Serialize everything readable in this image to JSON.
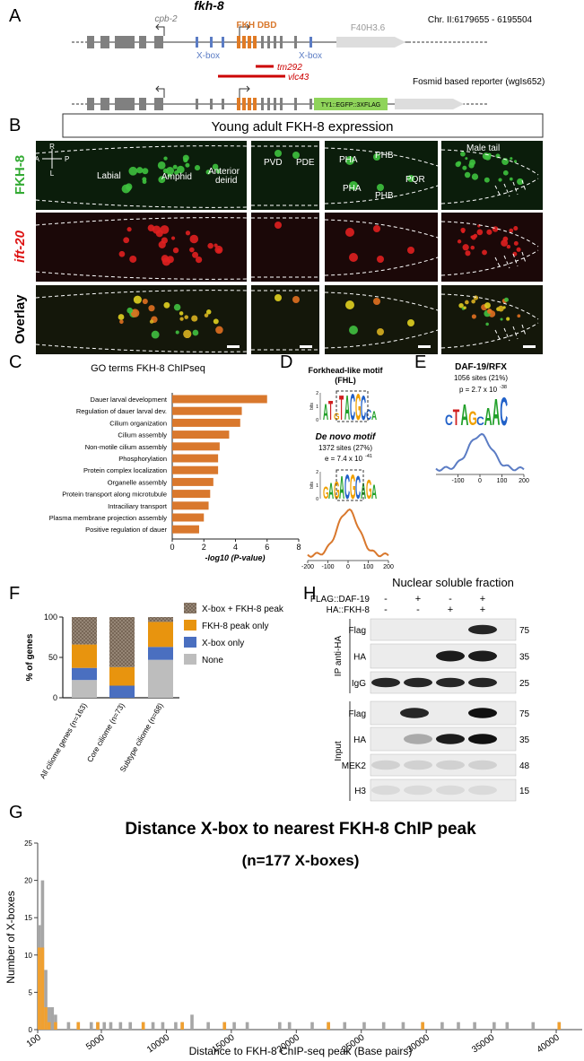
{
  "panel_labels": [
    "A",
    "B",
    "C",
    "D",
    "E",
    "F",
    "G",
    "H"
  ],
  "gene_diagram": {
    "gene": "fkh-8",
    "upstream_gene": "cpb-2",
    "domain": "FKH DBD",
    "downstream_gene": "F40H3.6",
    "locus": "Chr. II:6179655 - 6195504",
    "xbox_labels": [
      "X-box",
      "X-box"
    ],
    "alleles": [
      "tm292",
      "vlc43"
    ],
    "reporter": "Fosmid based reporter (wgIs652)",
    "tag": "TY1::EGFP::3XFLAG"
  },
  "microscopy": {
    "title": "Young adult FKH-8 expression",
    "rows": [
      "FKH-8",
      "ift-20",
      "Overlay"
    ],
    "axes": [
      "R",
      "A",
      "P",
      "L"
    ],
    "labels": [
      "Labial",
      "Amphid",
      "Anterior",
      "deirid",
      "PVD",
      "PDE",
      "PHA",
      "PHB",
      "PHA",
      "PHB",
      "PQR",
      "Male tail"
    ]
  },
  "motifs": {
    "fhl": {
      "title": "Forkhead-like motif",
      "subtitle": "(FHL)",
      "ylabel": "bits",
      "yticks": [
        0,
        1,
        2
      ],
      "logo": [
        "A",
        "T",
        "G",
        "T",
        "A",
        "C",
        "G",
        "C",
        "C",
        "A"
      ]
    },
    "de_novo": {
      "title": "De novo motif",
      "sites": "1372 sites (27%)",
      "statistic": "e = 7.4 x 10",
      "exponent": "-41",
      "ylabel": "bits",
      "yticks": [
        0,
        1,
        2
      ],
      "logo": [
        "G",
        "A",
        "G",
        "A",
        "C",
        "G",
        "C",
        "A",
        "G",
        "A"
      ],
      "xlim": [
        -200,
        200
      ],
      "xticks": [
        -200,
        -100,
        0,
        100,
        200
      ]
    },
    "daf19": {
      "title": "DAF-19/RFX",
      "sites": "1056 sites (21%)",
      "statistic": "p = 2.7 x 10",
      "exponent": "-38",
      "logo": [
        "C",
        "T",
        "A",
        "G",
        "C",
        "A",
        "A",
        "C"
      ],
      "xlim": [
        -200,
        200
      ],
      "xticks": [
        -100,
        0,
        100,
        200
      ]
    }
  },
  "western_blot": {
    "title": "Nuclear soluble fraction",
    "conditions": [
      {
        "label": "FLAG::DAF-19",
        "signs": [
          "-",
          "+",
          "-",
          "+"
        ]
      },
      {
        "label": "HA::FKH-8",
        "signs": [
          "-",
          "-",
          "+",
          "+"
        ]
      }
    ],
    "sections": [
      {
        "label": "IP anti-HA",
        "rows": [
          {
            "antibody": "Flag",
            "kda": "75"
          },
          {
            "antibody": "HA",
            "kda": "35"
          },
          {
            "antibody": "IgG",
            "kda": "25"
          }
        ]
      },
      {
        "label": "Input",
        "rows": [
          {
            "antibody": "Flag",
            "kda": "75"
          },
          {
            "antibody": "HA",
            "kda": "35"
          },
          {
            "antibody": "MEK2",
            "kda": "48"
          },
          {
            "antibody": "H3",
            "kda": "15"
          }
        ]
      }
    ]
  },
  "chart_data": [
    {
      "type": "hbar",
      "title": "GO terms FKH-8 ChIPseq",
      "xlabel": "-log10 (P-value)",
      "color": "#d9782d",
      "categories": [
        "Dauer larval development",
        "Regulation of dauer larval dev.",
        "Cilium organization",
        "Cilium assembly",
        "Non-motile cilium assembly",
        "Phosphorylation",
        "Protein complex localization",
        "Organelle assembly",
        "Protein transport along microtubule",
        "Intraciliary transport",
        "Plasma membrane projection assembly",
        "Positive regulation of dauer"
      ],
      "values": [
        6.0,
        4.4,
        4.3,
        3.6,
        3.0,
        2.9,
        2.9,
        2.6,
        2.4,
        2.3,
        2.0,
        1.7
      ],
      "xlim": [
        0,
        8
      ],
      "xticks": [
        0,
        2,
        4,
        6,
        8
      ]
    },
    {
      "type": "stacked_bar",
      "ylabel": "% of genes",
      "categories": [
        "All ciliome genes (n=163)",
        "Core ciliome (n=73)",
        "Subtype ciliome (n=68)"
      ],
      "series": [
        {
          "name": "None",
          "color": "#bdbdbd",
          "values": [
            22,
            0,
            47
          ]
        },
        {
          "name": "X-box only",
          "color": "#4a6fc0",
          "values": [
            15,
            15,
            16
          ]
        },
        {
          "name": "FKH-8 peak only",
          "color": "#e8940e",
          "values": [
            29,
            23,
            31
          ]
        },
        {
          "name": "X-box + FKH-8 peak",
          "color": "#9c8c7c",
          "pattern": "hatch",
          "values": [
            34,
            62,
            6
          ]
        }
      ],
      "ylim": [
        0,
        100
      ],
      "yticks": [
        0,
        50,
        100
      ]
    },
    {
      "type": "overlay_hist",
      "title": "Distance X-box to nearest FKH-8 ChIP peak",
      "subtitle": "(n=177 X-boxes)",
      "xlabel": "Distance to FKH-8 ChIP-seq peak (Base pairs)",
      "ylabel": "Number of X-boxes",
      "x": [
        100,
        350,
        600,
        850,
        1100,
        1350,
        2350,
        3100,
        4100,
        4600,
        5100,
        5600,
        6350,
        7100,
        8100,
        8850,
        9600,
        10600,
        11100,
        11850,
        13100,
        14350,
        15100,
        16100,
        18600,
        19350,
        21100,
        22350,
        23600,
        25100,
        26600,
        28100,
        29600,
        31100,
        32350,
        33600,
        35100,
        36100,
        38100,
        40100
      ],
      "series": [
        {
          "color": "#a6a6a6",
          "values": [
            14,
            20,
            8,
            3,
            3,
            2,
            1,
            1,
            1,
            1,
            1,
            1,
            1,
            1,
            1,
            1,
            1,
            1,
            1,
            2,
            1,
            1,
            1,
            1,
            1,
            1,
            1,
            1,
            1,
            1,
            1,
            1,
            1,
            1,
            1,
            1,
            1,
            1,
            1,
            1
          ]
        },
        {
          "color": "#f0a030",
          "values": [
            11,
            11,
            3,
            1,
            0,
            1,
            0,
            1,
            0,
            1,
            0,
            0,
            0,
            0,
            1,
            0,
            0,
            0,
            1,
            0,
            0,
            1,
            0,
            0,
            0,
            0,
            0,
            1,
            0,
            0,
            0,
            0,
            1,
            0,
            0,
            0,
            0,
            0,
            0,
            1
          ]
        }
      ],
      "xlim": [
        100,
        42000
      ],
      "xticks": [
        100,
        5000,
        10000,
        15000,
        20000,
        25000,
        30000,
        35000,
        40000
      ],
      "ylim": [
        0,
        25
      ],
      "yticks": [
        0,
        5,
        10,
        15,
        20,
        25
      ]
    }
  ]
}
